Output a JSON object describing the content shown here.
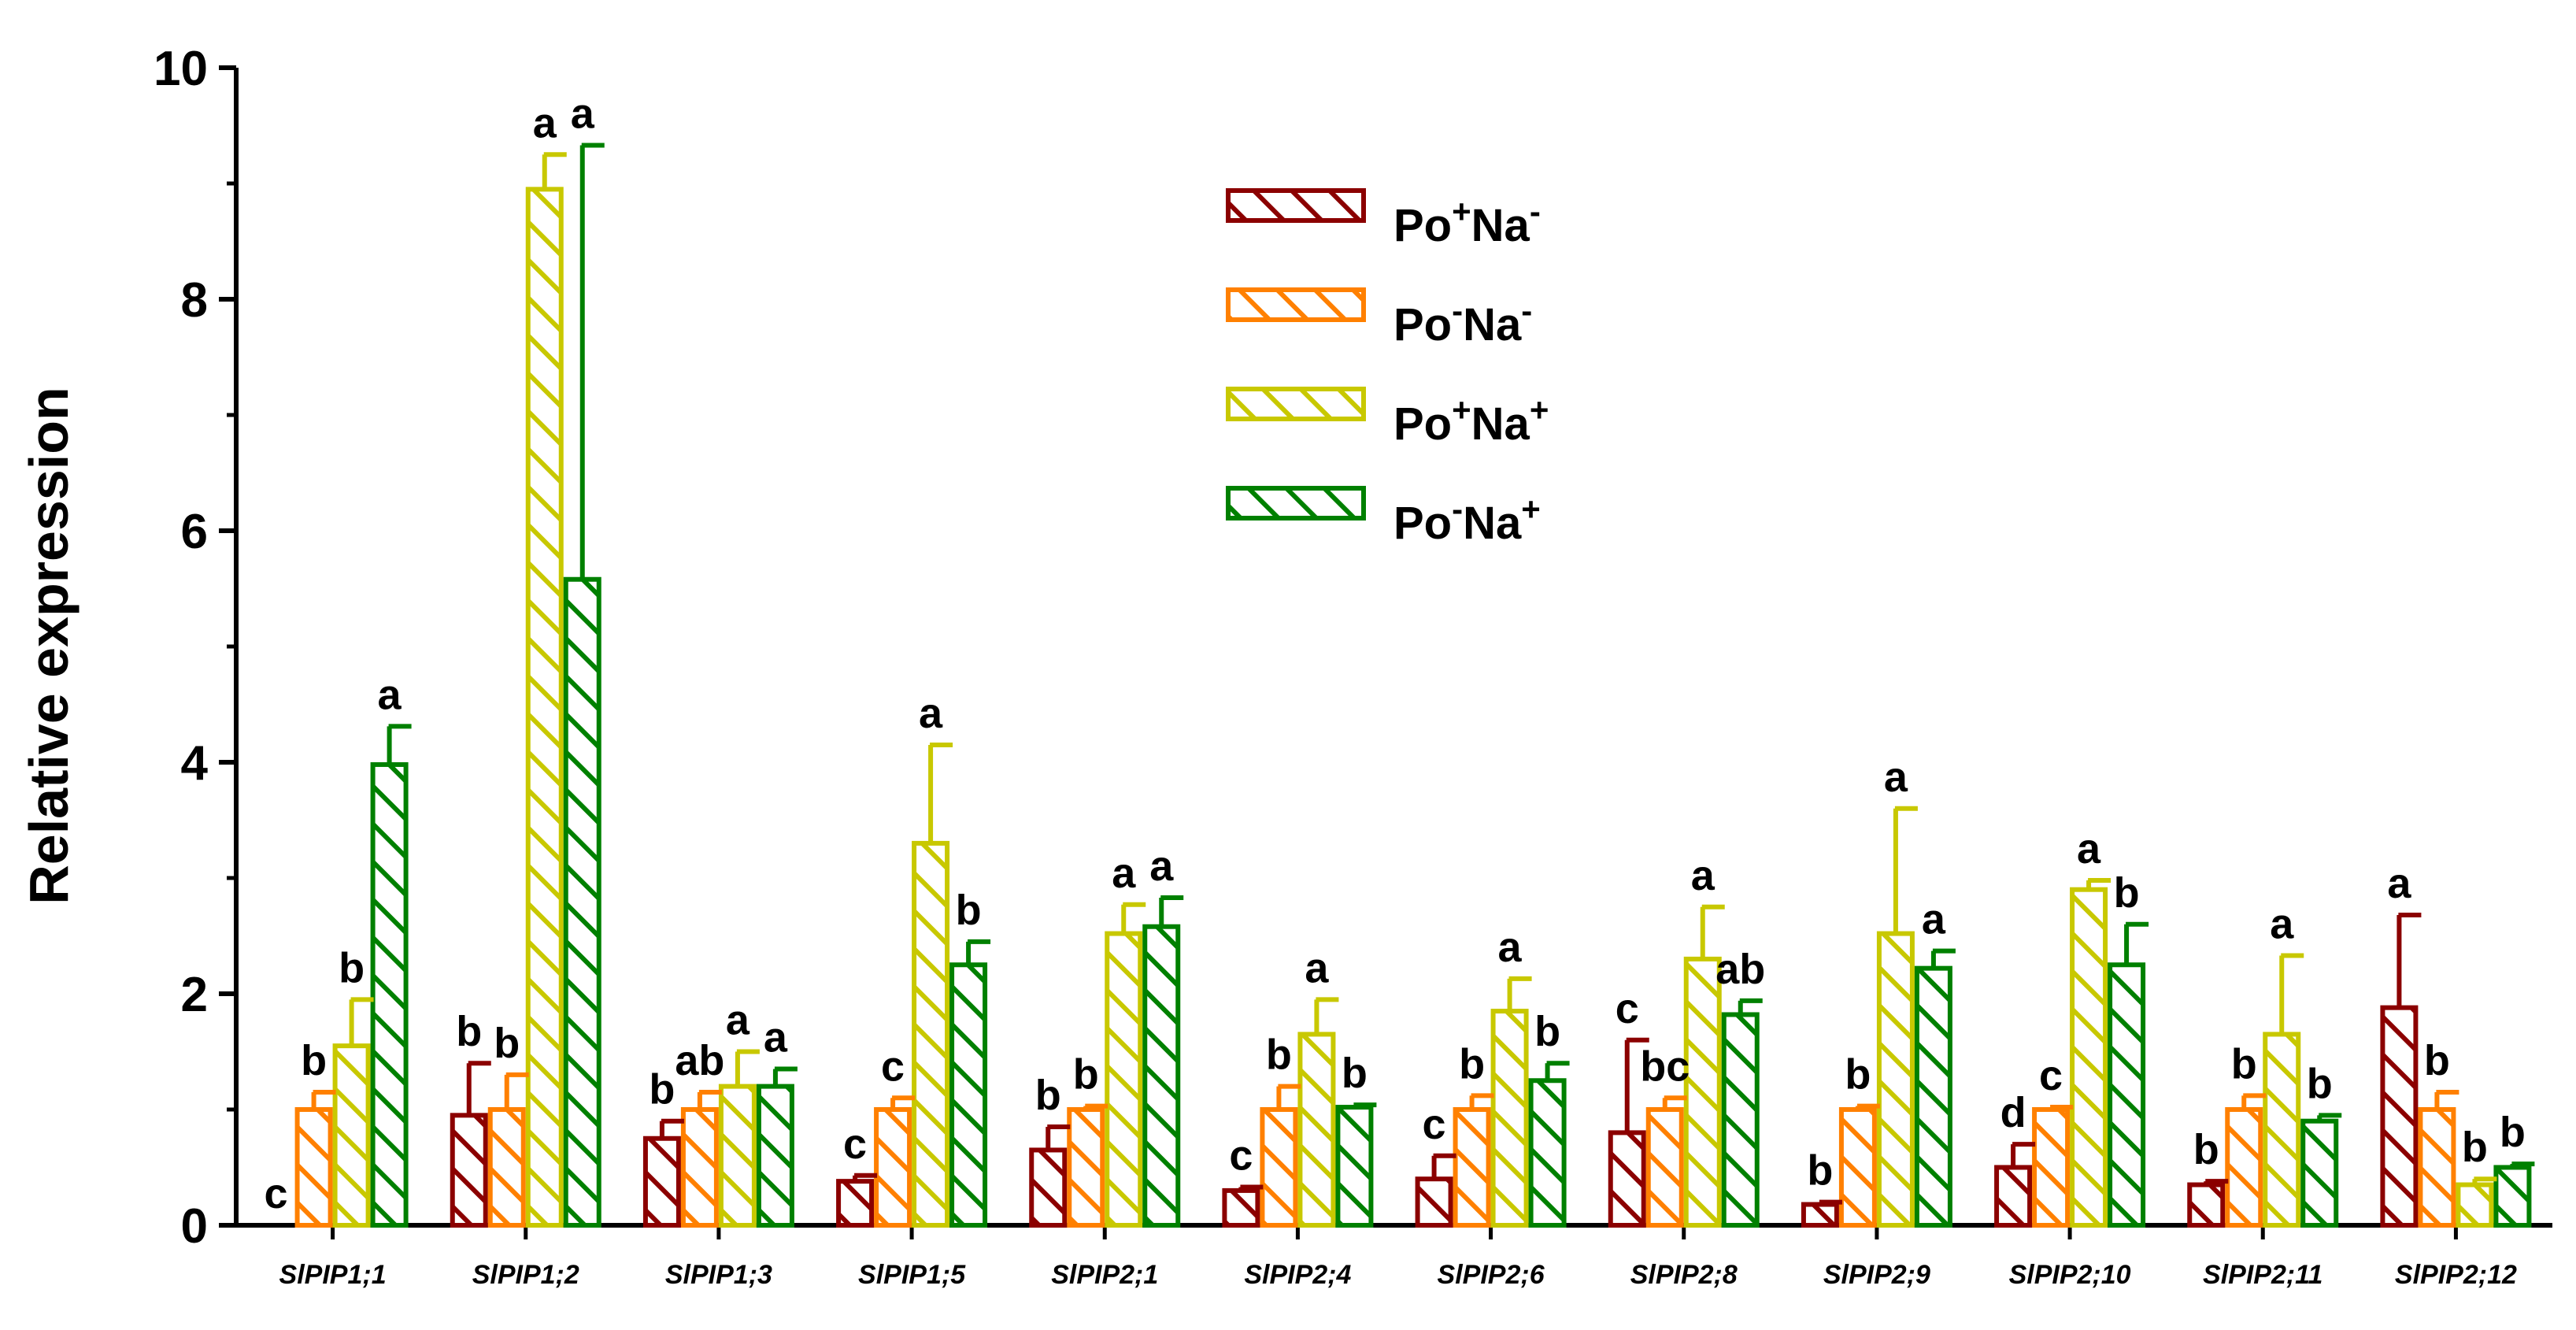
{
  "chart_data": {
    "type": "bar",
    "ylabel": "Relative expression",
    "ylim": [
      0,
      10
    ],
    "yticks": [
      "0",
      "2",
      "4",
      "6",
      "8",
      "10"
    ],
    "categories": [
      "SlPIP1;1",
      "SlPIP1;2",
      "SlPIP1;3",
      "SlPIP1;5",
      "SlPIP2;1",
      "SlPIP2;4",
      "SlPIP2;6",
      "SlPIP2;8",
      "SlPIP2;9",
      "SlPIP2;10",
      "SlPIP2;11",
      "SlPIP2;12"
    ],
    "legend_position": "top-center",
    "series": [
      {
        "legend": {
          "base1": "Po",
          "sup1": "+",
          "base2": "Na",
          "sup2": "-"
        },
        "color": "#8b0000",
        "values": [
          0.0,
          0.95,
          0.75,
          0.38,
          0.65,
          0.3,
          0.4,
          0.8,
          0.18,
          0.5,
          0.35,
          1.88
        ],
        "errors": [
          0.0,
          0.45,
          0.15,
          0.05,
          0.2,
          0.03,
          0.2,
          0.8,
          0.02,
          0.2,
          0.03,
          0.8
        ],
        "labels": [
          "c",
          "b",
          "b",
          "c",
          "b",
          "c",
          "c",
          "c",
          "b",
          "d",
          "b",
          "a"
        ]
      },
      {
        "legend": {
          "base1": "Po",
          "sup1": "-",
          "base2": "Na",
          "sup2": "-"
        },
        "color": "#ff8000",
        "values": [
          1.0,
          1.0,
          1.0,
          1.0,
          1.0,
          1.0,
          1.0,
          1.0,
          1.0,
          1.0,
          1.0,
          1.0
        ],
        "errors": [
          0.15,
          0.3,
          0.15,
          0.1,
          0.03,
          0.2,
          0.12,
          0.1,
          0.03,
          0.02,
          0.12,
          0.15
        ],
        "labels": [
          "b",
          "b",
          "ab",
          "c",
          "b",
          "b",
          "b",
          "bc",
          "b",
          "c",
          "b",
          "b"
        ]
      },
      {
        "legend": {
          "base1": "Po",
          "sup1": "+",
          "base2": "Na",
          "sup2": "+"
        },
        "color": "#c8c800",
        "values": [
          1.55,
          8.95,
          1.2,
          3.3,
          2.52,
          1.65,
          1.85,
          2.3,
          2.52,
          2.9,
          1.65,
          0.35
        ],
        "errors": [
          0.4,
          0.3,
          0.3,
          0.85,
          0.25,
          0.3,
          0.28,
          0.45,
          1.08,
          0.08,
          0.68,
          0.05
        ],
        "labels": [
          "b",
          "a",
          "a",
          "a",
          "a",
          "a",
          "a",
          "a",
          "a",
          "a",
          "a",
          "b"
        ]
      },
      {
        "legend": {
          "base1": "Po",
          "sup1": "-",
          "base2": "Na",
          "sup2": "+"
        },
        "color": "#008000",
        "values": [
          3.98,
          5.58,
          1.2,
          2.25,
          2.58,
          1.02,
          1.25,
          1.82,
          2.22,
          2.25,
          0.9,
          0.5
        ],
        "errors": [
          0.33,
          3.75,
          0.15,
          0.2,
          0.25,
          0.02,
          0.15,
          0.12,
          0.15,
          0.35,
          0.05,
          0.03
        ],
        "labels": [
          "a",
          "a",
          "a",
          "b",
          "a",
          "b",
          "b",
          "ab",
          "a",
          "b",
          "b",
          "b"
        ]
      }
    ]
  }
}
